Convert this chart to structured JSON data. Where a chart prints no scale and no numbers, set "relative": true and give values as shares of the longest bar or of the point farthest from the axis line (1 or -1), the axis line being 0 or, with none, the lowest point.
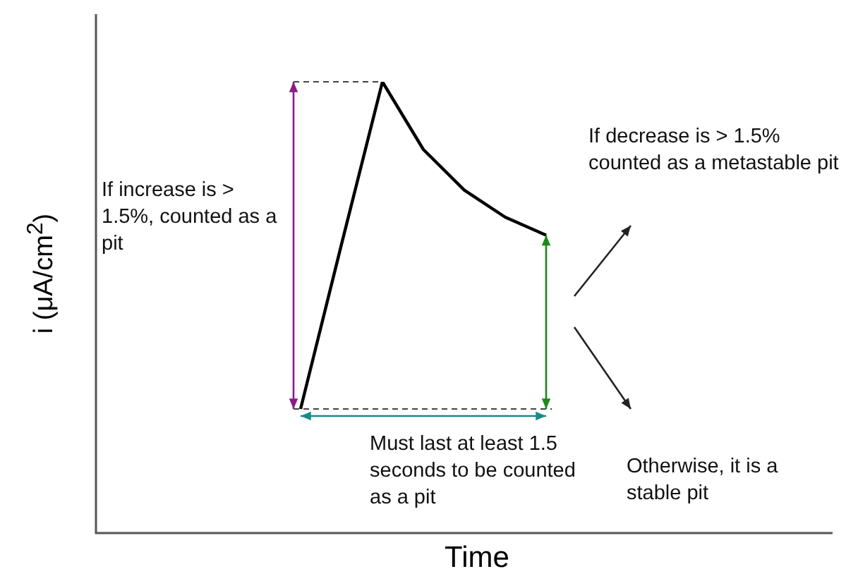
{
  "chart_data": {
    "type": "line",
    "relative": true,
    "xlabel": "Time",
    "ylabel": "i (μA/cm$^{2}$)",
    "categories": [
      null,
      null,
      null,
      null,
      null,
      null,
      null,
      null,
      null,
      null,
      null,
      null,
      null,
      null,
      null,
      null,
      null,
      null,
      null
    ],
    "series": [
      {
        "color": "#000000",
        "values": [
          null,
          null,
          null,
          null,
          null,
          0.275,
          0.64,
          1,
          0.85,
          0.76,
          0.7,
          0.66,
          null,
          null,
          null,
          null,
          null,
          null,
          null
        ]
      }
    ],
    "marker": "none",
    "legend": false,
    "annotations": [
      "If increase is > 1.5%, counted as a pit",
      "If decrease is > 1.5% counted as a metastable pit",
      "Must last at least 1.5 seconds to be counted as a pit",
      "Otherwise, it is a stable pit"
    ]
  }
}
